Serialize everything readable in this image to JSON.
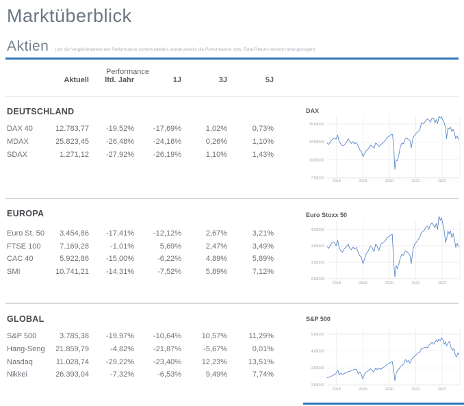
{
  "page": {
    "title": "Marktüberblick",
    "section_heading": "Aktien",
    "section_note": "(um die Vergleichbarkeit der Performance sicherzustellen, wurde jeweils die Performance- bzw. Total-Return-Version herangezogen)"
  },
  "colors": {
    "accent_blue": "#2e74b8",
    "chart_line": "#5b87ca",
    "grid_line": "#e6e8ea",
    "axis_text": "#9ba1a7"
  },
  "table": {
    "group_header": "Performance",
    "columns": [
      "Aktuell",
      "lfd. Jahr",
      "1J",
      "3J",
      "5J"
    ],
    "sections": [
      {
        "title": "DEUTSCHLAND",
        "rows": [
          {
            "label": "DAX 40",
            "values": [
              "12.783,77",
              "-19,52%",
              "-17,69%",
              "1,02%",
              "0,73%"
            ]
          },
          {
            "label": "MDAX",
            "values": [
              "25.823,45",
              "-26,48%",
              "-24,16%",
              "0,26%",
              "1,10%"
            ]
          },
          {
            "label": "SDAX",
            "values": [
              "1.271,12",
              "-27,92%",
              "-26,19%",
              "1,10%",
              "1,43%"
            ]
          }
        ]
      },
      {
        "title": "EUROPA",
        "rows": [
          {
            "label": "Euro St. 50",
            "values": [
              "3.454,86",
              "-17,41%",
              "-12,12%",
              "2,67%",
              "3,21%"
            ]
          },
          {
            "label": "FTSE 100",
            "values": [
              "7.169,28",
              "-1,01%",
              "5,69%",
              "2,47%",
              "3,49%"
            ]
          },
          {
            "label": "CAC 40",
            "values": [
              "5.922,86",
              "-15,00%",
              "-6,22%",
              "4,89%",
              "5,89%"
            ]
          },
          {
            "label": "SMI",
            "values": [
              "10.741,21",
              "-14,31%",
              "-7,52%",
              "5,89%",
              "7,12%"
            ]
          }
        ]
      },
      {
        "title": "GLOBAL",
        "rows": [
          {
            "label": "S&P 500",
            "values": [
              "3.785,38",
              "-19,97%",
              "-10,64%",
              "10,57%",
              "11,29%"
            ]
          },
          {
            "label": "Hang-Seng",
            "values": [
              "21.859,79",
              "-4,82%",
              "-21,87%",
              "-5,67%",
              "0,01%"
            ]
          },
          {
            "label": "Nasdaq",
            "values": [
              "11.028,74",
              "-29,22%",
              "-23,40%",
              "12,23%",
              "13,51%"
            ]
          },
          {
            "label": "Nikkei",
            "values": [
              "26.393,04",
              "-7,32%",
              "-6,53%",
              "9,49%",
              "7,74%"
            ]
          }
        ]
      }
    ]
  },
  "chart_data": [
    {
      "type": "line",
      "title": "DAX",
      "x_ticks": [
        "2018",
        "2019",
        "2020",
        "2021",
        "2022"
      ],
      "x_range": [
        2017.64,
        2022.675
      ],
      "y_ticks": [
        15000,
        12500,
        10000,
        7500
      ],
      "y_tick_labels": [
        "15.000,00",
        "12.500,00",
        "10.000,00",
        "7.500,00"
      ],
      "grid": true,
      "legend": "none",
      "points": [
        [
          2017.64,
          12350
        ],
        [
          2017.7,
          12150
        ],
        [
          2017.78,
          12600
        ],
        [
          2017.85,
          12900
        ],
        [
          2017.92,
          13050
        ],
        [
          2017.98,
          12900
        ],
        [
          2018.04,
          13480
        ],
        [
          2018.1,
          12500
        ],
        [
          2018.16,
          12250
        ],
        [
          2018.22,
          11950
        ],
        [
          2018.3,
          12100
        ],
        [
          2018.38,
          12500
        ],
        [
          2018.44,
          12950
        ],
        [
          2018.5,
          12550
        ],
        [
          2018.56,
          12300
        ],
        [
          2018.62,
          12550
        ],
        [
          2018.68,
          12250
        ],
        [
          2018.75,
          12400
        ],
        [
          2018.82,
          11900
        ],
        [
          2018.88,
          11400
        ],
        [
          2018.94,
          11200
        ],
        [
          2019.0,
          10450
        ],
        [
          2019.06,
          10900
        ],
        [
          2019.12,
          11300
        ],
        [
          2019.2,
          11500
        ],
        [
          2019.28,
          12050
        ],
        [
          2019.34,
          11950
        ],
        [
          2019.42,
          11650
        ],
        [
          2019.48,
          12350
        ],
        [
          2019.54,
          12200
        ],
        [
          2019.6,
          11850
        ],
        [
          2019.68,
          12150
        ],
        [
          2019.76,
          12400
        ],
        [
          2019.84,
          12700
        ],
        [
          2019.92,
          13150
        ],
        [
          2019.98,
          13250
        ],
        [
          2020.06,
          13500
        ],
        [
          2020.12,
          13550
        ],
        [
          2020.17,
          11500
        ],
        [
          2020.21,
          8700
        ],
        [
          2020.26,
          10000
        ],
        [
          2020.3,
          9900
        ],
        [
          2020.36,
          10700
        ],
        [
          2020.42,
          11900
        ],
        [
          2020.48,
          12350
        ],
        [
          2020.54,
          12250
        ],
        [
          2020.6,
          12900
        ],
        [
          2020.66,
          13050
        ],
        [
          2020.72,
          12850
        ],
        [
          2020.78,
          12700
        ],
        [
          2020.83,
          11650
        ],
        [
          2020.9,
          13100
        ],
        [
          2020.96,
          13450
        ],
        [
          2021.02,
          13700
        ],
        [
          2021.08,
          13950
        ],
        [
          2021.15,
          14100
        ],
        [
          2021.22,
          15150
        ],
        [
          2021.3,
          15050
        ],
        [
          2021.38,
          15450
        ],
        [
          2021.44,
          15700
        ],
        [
          2021.5,
          15550
        ],
        [
          2021.56,
          15250
        ],
        [
          2021.62,
          15850
        ],
        [
          2021.68,
          15750
        ],
        [
          2021.73,
          15150
        ],
        [
          2021.78,
          15600
        ],
        [
          2021.83,
          15050
        ],
        [
          2021.88,
          16050
        ],
        [
          2021.93,
          15850
        ],
        [
          2021.98,
          15950
        ],
        [
          2022.03,
          15500
        ],
        [
          2022.08,
          15150
        ],
        [
          2022.13,
          14450
        ],
        [
          2022.17,
          12950
        ],
        [
          2022.22,
          14450
        ],
        [
          2022.27,
          14250
        ],
        [
          2022.32,
          14550
        ],
        [
          2022.37,
          13950
        ],
        [
          2022.42,
          14250
        ],
        [
          2022.47,
          13700
        ],
        [
          2022.52,
          12950
        ],
        [
          2022.57,
          13350
        ],
        [
          2022.62,
          12800
        ]
      ]
    },
    {
      "type": "line",
      "title": "Euro Stoxx 50",
      "x_ticks": [
        "2018",
        "2019",
        "2020",
        "2021",
        "2022"
      ],
      "x_range": [
        2017.64,
        2022.675
      ],
      "y_ticks": [
        4000,
        3500,
        3000,
        2500
      ],
      "y_tick_labels": [
        "4.000,00",
        "3.500,00",
        "3.000,00",
        "2.500,00"
      ],
      "grid": true,
      "legend": "none",
      "points": [
        [
          2017.64,
          3480
        ],
        [
          2017.7,
          3420
        ],
        [
          2017.78,
          3550
        ],
        [
          2017.85,
          3620
        ],
        [
          2017.92,
          3600
        ],
        [
          2017.98,
          3500
        ],
        [
          2018.04,
          3670
        ],
        [
          2018.1,
          3420
        ],
        [
          2018.16,
          3350
        ],
        [
          2018.22,
          3300
        ],
        [
          2018.3,
          3420
        ],
        [
          2018.38,
          3480
        ],
        [
          2018.44,
          3550
        ],
        [
          2018.5,
          3430
        ],
        [
          2018.56,
          3380
        ],
        [
          2018.62,
          3460
        ],
        [
          2018.68,
          3400
        ],
        [
          2018.75,
          3450
        ],
        [
          2018.82,
          3300
        ],
        [
          2018.88,
          3200
        ],
        [
          2018.94,
          3150
        ],
        [
          2019.0,
          2950
        ],
        [
          2019.06,
          3100
        ],
        [
          2019.12,
          3250
        ],
        [
          2019.2,
          3350
        ],
        [
          2019.28,
          3500
        ],
        [
          2019.34,
          3450
        ],
        [
          2019.42,
          3320
        ],
        [
          2019.48,
          3550
        ],
        [
          2019.54,
          3480
        ],
        [
          2019.6,
          3350
        ],
        [
          2019.68,
          3550
        ],
        [
          2019.76,
          3600
        ],
        [
          2019.84,
          3650
        ],
        [
          2019.92,
          3750
        ],
        [
          2019.98,
          3780
        ],
        [
          2020.06,
          3830
        ],
        [
          2020.11,
          3850
        ],
        [
          2020.16,
          3050
        ],
        [
          2020.21,
          2550
        ],
        [
          2020.26,
          2900
        ],
        [
          2020.3,
          2800
        ],
        [
          2020.36,
          2950
        ],
        [
          2020.42,
          3150
        ],
        [
          2020.48,
          3250
        ],
        [
          2020.54,
          3200
        ],
        [
          2020.6,
          3350
        ],
        [
          2020.66,
          3320
        ],
        [
          2020.72,
          3280
        ],
        [
          2020.78,
          3200
        ],
        [
          2020.83,
          2950
        ],
        [
          2020.9,
          3400
        ],
        [
          2020.96,
          3550
        ],
        [
          2021.02,
          3600
        ],
        [
          2021.08,
          3680
        ],
        [
          2021.15,
          3750
        ],
        [
          2021.22,
          3900
        ],
        [
          2021.3,
          3950
        ],
        [
          2021.38,
          4050
        ],
        [
          2021.44,
          4100
        ],
        [
          2021.5,
          4000
        ],
        [
          2021.56,
          4150
        ],
        [
          2021.62,
          4200
        ],
        [
          2021.68,
          4120
        ],
        [
          2021.73,
          4050
        ],
        [
          2021.78,
          4180
        ],
        [
          2021.83,
          4000
        ],
        [
          2021.88,
          4400
        ],
        [
          2021.93,
          4280
        ],
        [
          2021.98,
          4350
        ],
        [
          2022.03,
          4150
        ],
        [
          2022.08,
          3950
        ],
        [
          2022.13,
          3600
        ],
        [
          2022.17,
          3700
        ],
        [
          2022.22,
          3950
        ],
        [
          2022.27,
          3850
        ],
        [
          2022.32,
          3950
        ],
        [
          2022.37,
          3750
        ],
        [
          2022.42,
          3870
        ],
        [
          2022.47,
          3700
        ],
        [
          2022.52,
          3450
        ],
        [
          2022.57,
          3580
        ],
        [
          2022.62,
          3470
        ]
      ]
    },
    {
      "type": "line",
      "title": "S&P 500",
      "x_ticks": [
        "2018",
        "2019",
        "2020",
        "2021",
        "2022"
      ],
      "x_range": [
        2017.64,
        2022.675
      ],
      "y_ticks": [
        5000,
        4000,
        3000,
        2000
      ],
      "y_tick_labels": [
        "5.000,00",
        "4.000,00",
        "3.000,00",
        "2.000,00"
      ],
      "grid": true,
      "legend": "none",
      "points": [
        [
          2017.64,
          2430
        ],
        [
          2017.7,
          2455
        ],
        [
          2017.78,
          2480
        ],
        [
          2017.85,
          2560
        ],
        [
          2017.92,
          2600
        ],
        [
          2017.98,
          2680
        ],
        [
          2018.05,
          2870
        ],
        [
          2018.1,
          2590
        ],
        [
          2018.16,
          2700
        ],
        [
          2018.22,
          2620
        ],
        [
          2018.3,
          2680
        ],
        [
          2018.38,
          2740
        ],
        [
          2018.44,
          2780
        ],
        [
          2018.5,
          2800
        ],
        [
          2018.56,
          2850
        ],
        [
          2018.62,
          2880
        ],
        [
          2018.7,
          2930
        ],
        [
          2018.76,
          2900
        ],
        [
          2018.82,
          2650
        ],
        [
          2018.88,
          2760
        ],
        [
          2018.94,
          2600
        ],
        [
          2018.99,
          2350
        ],
        [
          2019.05,
          2620
        ],
        [
          2019.12,
          2750
        ],
        [
          2019.2,
          2830
        ],
        [
          2019.28,
          2950
        ],
        [
          2019.34,
          2880
        ],
        [
          2019.4,
          2750
        ],
        [
          2019.48,
          2980
        ],
        [
          2019.54,
          2900
        ],
        [
          2019.6,
          2980
        ],
        [
          2019.68,
          2920
        ],
        [
          2019.76,
          3020
        ],
        [
          2019.84,
          3100
        ],
        [
          2019.92,
          3220
        ],
        [
          2019.98,
          3250
        ],
        [
          2020.06,
          3330
        ],
        [
          2020.11,
          3380
        ],
        [
          2020.16,
          2900
        ],
        [
          2020.21,
          2240
        ],
        [
          2020.26,
          2700
        ],
        [
          2020.31,
          2850
        ],
        [
          2020.37,
          2950
        ],
        [
          2020.43,
          3100
        ],
        [
          2020.49,
          3150
        ],
        [
          2020.55,
          3250
        ],
        [
          2020.61,
          3500
        ],
        [
          2020.66,
          3350
        ],
        [
          2020.72,
          3450
        ],
        [
          2020.78,
          3270
        ],
        [
          2020.84,
          3500
        ],
        [
          2020.9,
          3620
        ],
        [
          2020.96,
          3700
        ],
        [
          2021.02,
          3800
        ],
        [
          2021.08,
          3880
        ],
        [
          2021.15,
          3920
        ],
        [
          2021.22,
          4150
        ],
        [
          2021.3,
          4180
        ],
        [
          2021.38,
          4230
        ],
        [
          2021.44,
          4180
        ],
        [
          2021.5,
          4350
        ],
        [
          2021.56,
          4420
        ],
        [
          2021.62,
          4520
        ],
        [
          2021.68,
          4400
        ],
        [
          2021.73,
          4530
        ],
        [
          2021.78,
          4650
        ],
        [
          2021.83,
          4550
        ],
        [
          2021.88,
          4700
        ],
        [
          2021.93,
          4600
        ],
        [
          2021.98,
          4780
        ],
        [
          2022.03,
          4680
        ],
        [
          2022.08,
          4400
        ],
        [
          2022.13,
          4550
        ],
        [
          2022.17,
          4300
        ],
        [
          2022.22,
          4450
        ],
        [
          2022.28,
          4580
        ],
        [
          2022.34,
          4200
        ],
        [
          2022.4,
          4050
        ],
        [
          2022.45,
          4150
        ],
        [
          2022.5,
          3750
        ],
        [
          2022.55,
          3650
        ],
        [
          2022.6,
          3900
        ],
        [
          2022.64,
          3790
        ]
      ]
    }
  ]
}
